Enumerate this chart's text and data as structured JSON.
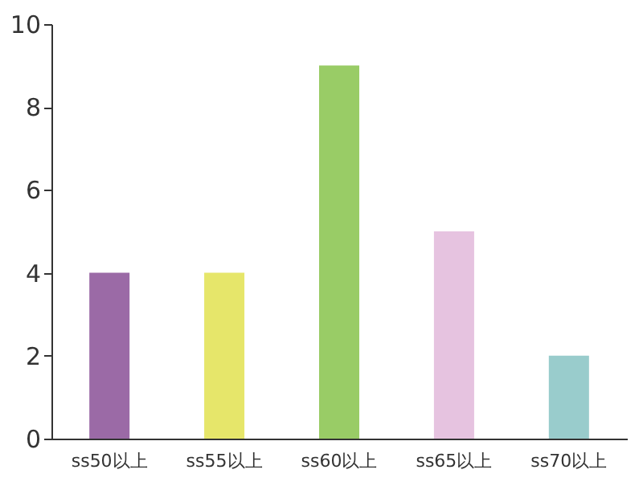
{
  "chart_data": {
    "type": "bar",
    "categories": [
      "ss50以上",
      "ss55以上",
      "ss60以上",
      "ss65以上",
      "ss70以上"
    ],
    "values": [
      4,
      4,
      9,
      5,
      2
    ],
    "colors": [
      "#9b6aa6",
      "#e6e66a",
      "#99cc66",
      "#e6c3e0",
      "#99cccc"
    ],
    "ylim": [
      0,
      10
    ],
    "yticks": [
      0,
      2,
      4,
      6,
      8,
      10
    ],
    "grid": false,
    "legend": false
  }
}
